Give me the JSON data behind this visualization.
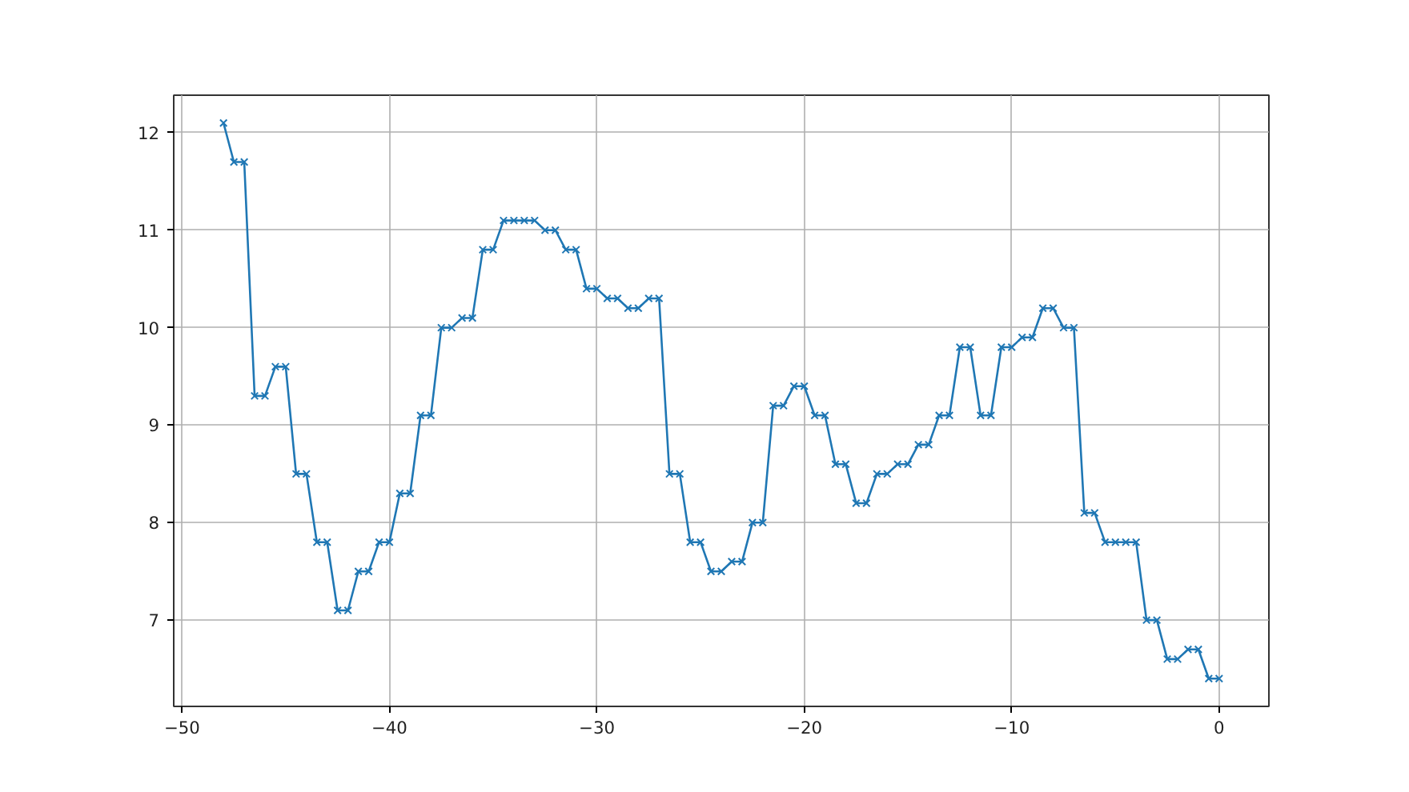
{
  "chart_data": {
    "type": "line",
    "marker": "cross",
    "line_style": "solid",
    "grid": true,
    "xlim": [
      -50.4,
      2.4
    ],
    "ylim": [
      6.115,
      12.385
    ],
    "xticks": [
      {
        "value": -50,
        "label": "−50"
      },
      {
        "value": -40,
        "label": "−40"
      },
      {
        "value": -30,
        "label": "−30"
      },
      {
        "value": -20,
        "label": "−20"
      },
      {
        "value": -10,
        "label": "−10"
      },
      0
    ],
    "yticks": [
      7,
      8,
      9,
      10,
      11,
      12
    ],
    "x": [
      -48,
      -47.5,
      -47,
      -46.5,
      -46,
      -45.5,
      -45,
      -44.5,
      -44,
      -43.5,
      -43,
      -42.5,
      -42,
      -41.5,
      -41,
      -40.5,
      -40,
      -39.5,
      -39,
      -38.5,
      -38,
      -37.5,
      -37,
      -36.5,
      -36,
      -35.5,
      -35,
      -34.5,
      -34,
      -33.5,
      -33,
      -32.5,
      -32,
      -31.5,
      -31,
      -30.5,
      -30,
      -29.5,
      -29,
      -28.5,
      -28,
      -27.5,
      -27,
      -26.5,
      -26,
      -25.5,
      -25,
      -24.5,
      -24,
      -23.5,
      -23,
      -22.5,
      -22,
      -21.5,
      -21,
      -20.5,
      -20,
      -19.5,
      -19,
      -18.5,
      -18,
      -17.5,
      -17,
      -16.5,
      -16,
      -15.5,
      -15,
      -14.5,
      -14,
      -13.5,
      -13,
      -12.5,
      -12,
      -11.5,
      -11,
      -10.5,
      -10,
      -9.5,
      -9,
      -8.5,
      -8,
      -7.5,
      -7,
      -6.5,
      -6,
      -5.5,
      -5,
      -4.5,
      -4,
      -3.5,
      -3,
      -2.5,
      -2,
      -1.5,
      -1,
      -0.5,
      0
    ],
    "series": [
      {
        "color": "#1f77b4",
        "values": [
          12.1,
          11.7,
          11.7,
          9.3,
          9.3,
          9.6,
          9.6,
          8.5,
          8.5,
          7.8,
          7.8,
          7.1,
          7.1,
          7.5,
          7.5,
          7.8,
          7.8,
          8.3,
          8.3,
          9.1,
          9.1,
          10.0,
          10.0,
          10.1,
          10.1,
          10.8,
          10.8,
          11.1,
          11.1,
          11.1,
          11.1,
          11.0,
          11.0,
          10.8,
          10.8,
          10.4,
          10.4,
          10.3,
          10.3,
          10.2,
          10.2,
          10.3,
          10.3,
          8.5,
          8.5,
          7.8,
          7.8,
          7.5,
          7.5,
          7.6,
          7.6,
          8.0,
          8.0,
          9.2,
          9.2,
          9.4,
          9.4,
          9.1,
          9.1,
          8.6,
          8.6,
          8.2,
          8.2,
          8.5,
          8.5,
          8.6,
          8.6,
          8.8,
          8.8,
          9.1,
          9.1,
          9.8,
          9.8,
          9.1,
          9.1,
          9.8,
          9.8,
          9.9,
          9.9,
          10.2,
          10.2,
          10.0,
          10.0,
          8.1,
          8.1,
          7.8,
          7.8,
          7.8,
          7.8,
          7.0,
          7.0,
          6.6,
          6.6,
          6.7,
          6.7,
          6.4,
          6.4
        ]
      }
    ]
  }
}
